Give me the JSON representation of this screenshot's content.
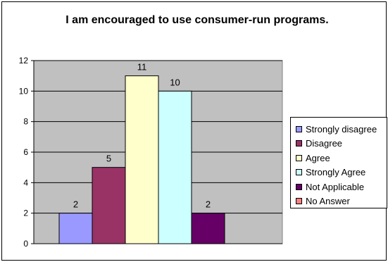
{
  "chart_data": {
    "type": "bar",
    "title": "I am encouraged to use consumer-run programs.",
    "xlabel": "",
    "ylabel": "",
    "ylim": [
      0,
      12
    ],
    "yticks": [
      0,
      2,
      4,
      6,
      8,
      10,
      12
    ],
    "categories": [
      "Strongly disagree",
      "Disagree",
      "Agree",
      "Strongly Agree",
      "Not Applicable",
      "No Answer"
    ],
    "values": [
      2,
      5,
      11,
      10,
      2,
      0
    ],
    "data_labels": [
      "2",
      "5",
      "11",
      "10",
      "2",
      ""
    ],
    "colors": [
      "#9999ff",
      "#993366",
      "#ffffcc",
      "#ccffff",
      "#660066",
      "#ff8080"
    ],
    "plot_background": "#c0c0c0",
    "grid": true,
    "legend_position": "right"
  }
}
